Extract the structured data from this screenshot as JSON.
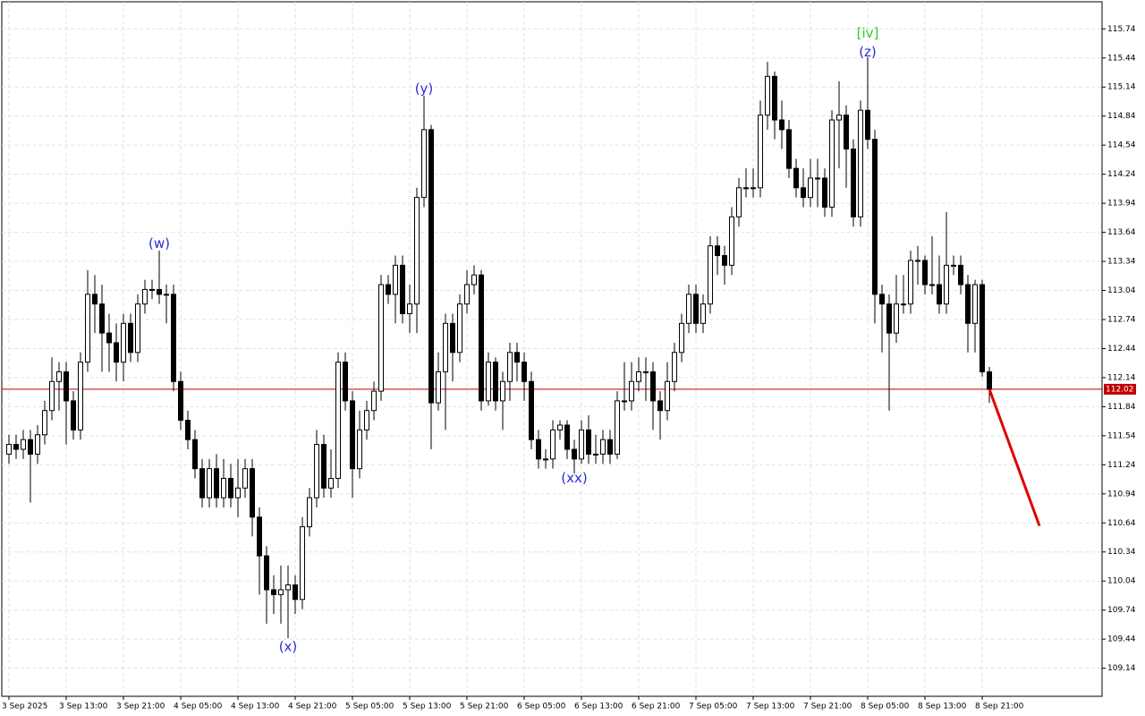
{
  "chart_data": {
    "type": "candlestick",
    "categories": [
      "3 Sep 2025",
      null,
      null,
      null,
      null,
      null,
      null,
      null,
      "3 Sep 13:00",
      null,
      null,
      null,
      null,
      null,
      null,
      null,
      "3 Sep 21:00",
      null,
      null,
      null,
      null,
      null,
      null,
      null,
      "4 Sep 05:00",
      null,
      null,
      null,
      null,
      null,
      null,
      null,
      "4 Sep 13:00",
      null,
      null,
      null,
      null,
      null,
      null,
      null,
      "4 Sep 21:00",
      null,
      null,
      null,
      null,
      null,
      null,
      null,
      "5 Sep 05:00",
      null,
      null,
      null,
      null,
      null,
      null,
      null,
      "5 Sep 13:00",
      null,
      null,
      null,
      null,
      null,
      null,
      null,
      "5 Sep 21:00",
      null,
      null,
      null,
      null,
      null,
      null,
      null,
      "6 Sep 05:00",
      null,
      null,
      null,
      null,
      null,
      null,
      null,
      "6 Sep 13:00",
      null,
      null,
      null,
      null,
      null,
      null,
      null,
      "6 Sep 21:00",
      null,
      null,
      null,
      null,
      null,
      null,
      null,
      "7 Sep 05:00",
      null,
      null,
      null,
      null,
      null,
      null,
      null,
      "7 Sep 13:00",
      null,
      null,
      null,
      null,
      null,
      null,
      null,
      "7 Sep 21:00",
      null,
      null,
      null,
      null,
      null,
      null,
      null,
      "8 Sep 05:00",
      null,
      null,
      null,
      null,
      null,
      null,
      null,
      "8 Sep 13:00",
      null,
      null,
      null,
      null,
      null,
      null,
      null,
      "8 Sep 21:00",
      null
    ],
    "open": [
      111.35,
      111.45,
      111.4,
      111.5,
      111.35,
      111.55,
      111.8,
      112.1,
      112.2,
      111.9,
      111.6,
      112.3,
      113.0,
      112.9,
      112.6,
      112.5,
      112.3,
      112.7,
      112.4,
      112.9,
      113.05,
      113.05,
      113.0,
      113.0,
      112.1,
      111.7,
      111.5,
      111.2,
      110.9,
      111.2,
      110.9,
      111.1,
      110.9,
      111.0,
      111.2,
      110.7,
      110.3,
      109.95,
      109.9,
      109.95,
      110.0,
      109.85,
      110.6,
      110.9,
      111.45,
      111.0,
      111.1,
      112.3,
      111.9,
      111.2,
      111.6,
      111.8,
      112.0,
      113.1,
      113.0,
      113.3,
      112.8,
      112.9,
      114.0,
      114.7,
      111.88,
      112.2,
      112.7,
      112.4,
      112.9,
      113.1,
      113.2,
      111.9,
      112.3,
      111.9,
      112.1,
      112.4,
      112.3,
      112.1,
      111.5,
      111.3,
      111.3,
      111.6,
      111.65,
      111.4,
      111.3,
      111.6,
      111.35,
      111.35,
      111.5,
      111.35,
      111.9,
      111.9,
      112.1,
      112.2,
      112.2,
      111.9,
      111.8,
      112.1,
      112.4,
      112.7,
      113.0,
      112.7,
      112.9,
      113.5,
      113.4,
      113.3,
      113.8,
      114.1,
      114.1,
      114.1,
      114.85,
      115.25,
      114.8,
      114.7,
      114.3,
      114.1,
      114.0,
      114.2,
      114.2,
      113.9,
      114.8,
      114.85,
      114.5,
      113.8,
      114.9,
      114.6,
      113.0,
      112.9,
      112.6,
      112.9,
      112.9,
      113.35,
      113.35,
      113.1,
      113.1,
      112.9,
      113.3,
      113.3,
      113.1,
      112.7,
      113.1,
      112.2
    ],
    "high": [
      111.55,
      111.55,
      111.6,
      111.6,
      111.65,
      111.9,
      112.35,
      112.3,
      112.3,
      112.0,
      112.4,
      113.25,
      113.2,
      113.1,
      112.8,
      112.7,
      112.8,
      112.8,
      113.0,
      113.15,
      113.15,
      113.45,
      113.1,
      113.1,
      112.2,
      111.8,
      111.6,
      111.3,
      111.3,
      111.35,
      111.3,
      111.25,
      111.3,
      111.3,
      111.3,
      110.8,
      110.4,
      110.1,
      110.2,
      110.2,
      110.1,
      110.7,
      111.0,
      111.6,
      111.55,
      111.4,
      112.4,
      112.4,
      112.0,
      111.8,
      111.9,
      112.1,
      113.2,
      113.2,
      113.4,
      113.4,
      113.1,
      114.1,
      115.05,
      114.75,
      112.4,
      112.8,
      112.8,
      113.0,
      113.25,
      113.3,
      113.25,
      112.4,
      112.35,
      112.2,
      112.5,
      112.5,
      112.4,
      112.2,
      111.6,
      111.4,
      111.7,
      111.7,
      111.7,
      111.5,
      111.7,
      111.75,
      111.55,
      111.6,
      111.6,
      112.0,
      112.3,
      112.3,
      112.35,
      112.35,
      112.3,
      112.0,
      112.3,
      112.5,
      112.8,
      113.1,
      113.1,
      113.0,
      113.6,
      113.6,
      113.5,
      113.9,
      114.2,
      114.3,
      114.3,
      115.0,
      115.4,
      115.3,
      115.0,
      114.8,
      114.4,
      114.3,
      114.4,
      114.4,
      114.3,
      114.9,
      115.2,
      114.95,
      114.6,
      115.0,
      115.45,
      114.7,
      113.1,
      113.0,
      113.2,
      113.2,
      113.45,
      113.5,
      113.4,
      113.6,
      113.4,
      113.85,
      113.4,
      113.4,
      113.2,
      113.15,
      113.15,
      112.25
    ],
    "low": [
      111.25,
      111.3,
      111.3,
      110.85,
      111.25,
      111.45,
      111.7,
      111.8,
      111.45,
      111.5,
      111.5,
      112.2,
      112.6,
      112.2,
      112.2,
      112.1,
      112.1,
      112.3,
      112.3,
      112.8,
      112.95,
      112.9,
      112.7,
      112.0,
      111.6,
      111.4,
      111.1,
      110.8,
      110.8,
      110.8,
      110.8,
      110.8,
      110.7,
      110.9,
      110.5,
      109.9,
      109.6,
      109.7,
      109.6,
      109.45,
      109.7,
      109.75,
      110.5,
      110.8,
      110.9,
      110.9,
      111.0,
      111.8,
      110.9,
      111.1,
      111.5,
      111.7,
      111.9,
      112.9,
      112.7,
      112.7,
      112.6,
      112.6,
      113.9,
      111.4,
      111.8,
      111.6,
      112.1,
      112.3,
      112.8,
      113.0,
      111.8,
      111.85,
      111.8,
      111.6,
      111.9,
      112.1,
      111.9,
      111.4,
      111.2,
      111.2,
      111.2,
      111.5,
      111.3,
      111.15,
      111.25,
      111.25,
      111.25,
      111.25,
      111.25,
      111.3,
      111.8,
      111.8,
      112.0,
      111.9,
      111.6,
      111.5,
      111.7,
      112.0,
      112.3,
      112.6,
      112.6,
      112.6,
      112.8,
      113.2,
      113.1,
      113.2,
      113.7,
      114.0,
      114.0,
      114.0,
      114.7,
      114.6,
      114.5,
      114.2,
      114.0,
      113.9,
      113.9,
      113.9,
      113.8,
      113.8,
      114.3,
      114.1,
      113.7,
      113.7,
      114.5,
      112.7,
      112.4,
      111.8,
      112.5,
      112.8,
      112.8,
      113.1,
      113.0,
      113.0,
      112.8,
      112.8,
      113.2,
      113.0,
      112.4,
      112.4,
      112.15,
      111.88
    ],
    "close": [
      111.45,
      111.4,
      111.5,
      111.35,
      111.55,
      111.8,
      112.1,
      112.2,
      111.9,
      111.6,
      112.3,
      113.0,
      112.9,
      112.6,
      112.5,
      112.3,
      112.7,
      112.4,
      112.9,
      113.05,
      113.05,
      113.0,
      113.0,
      112.1,
      111.7,
      111.5,
      111.2,
      110.9,
      111.2,
      110.9,
      111.1,
      110.9,
      111.0,
      111.2,
      110.7,
      110.3,
      109.95,
      109.9,
      109.95,
      110.0,
      109.85,
      110.6,
      110.9,
      111.45,
      111.0,
      111.1,
      112.3,
      111.9,
      111.2,
      111.6,
      111.8,
      112.0,
      113.1,
      113.0,
      113.3,
      112.8,
      112.9,
      114.0,
      114.7,
      111.88,
      112.2,
      112.7,
      112.4,
      112.9,
      113.1,
      113.2,
      111.9,
      112.3,
      111.9,
      112.1,
      112.4,
      112.3,
      112.1,
      111.5,
      111.3,
      111.3,
      111.6,
      111.65,
      111.4,
      111.3,
      111.6,
      111.35,
      111.35,
      111.5,
      111.35,
      111.9,
      111.9,
      112.1,
      112.2,
      112.2,
      111.9,
      111.8,
      112.1,
      112.4,
      112.7,
      113.0,
      112.7,
      112.9,
      113.5,
      113.4,
      113.3,
      113.8,
      114.1,
      114.1,
      114.1,
      114.85,
      115.25,
      114.8,
      114.7,
      114.3,
      114.1,
      114.0,
      114.2,
      114.2,
      113.9,
      114.8,
      114.85,
      114.5,
      113.8,
      114.9,
      114.6,
      113.0,
      112.9,
      112.6,
      112.9,
      112.9,
      113.35,
      113.35,
      113.1,
      113.1,
      112.9,
      113.3,
      113.3,
      113.1,
      112.7,
      113.1,
      112.2,
      112.02
    ],
    "up_color": "#ffffff",
    "down_color": "#000000",
    "ylim": [
      108.85,
      116.02
    ],
    "yticks": [
      115.74,
      115.44,
      115.14,
      114.84,
      114.54,
      114.24,
      113.94,
      113.64,
      113.34,
      113.04,
      112.74,
      112.44,
      112.14,
      111.84,
      111.54,
      111.24,
      110.94,
      110.64,
      110.34,
      110.04,
      109.74,
      109.44,
      109.14
    ],
    "grid": true,
    "last_price": 112.02,
    "last_price_color": "#c00000",
    "forecast": {
      "x": [
        137,
        144
      ],
      "values": [
        112.02,
        110.61
      ],
      "color": "#e00000"
    },
    "annotations": [
      {
        "text": "(w)",
        "x": 21,
        "y": 113.52,
        "color": "#2b2bd6"
      },
      {
        "text": "(x)",
        "x": 39,
        "y": 109.36,
        "color": "#2b2bd6"
      },
      {
        "text": "(y)",
        "x": 58,
        "y": 115.12,
        "color": "#2b2bd6"
      },
      {
        "text": "(xx)",
        "x": 79,
        "y": 111.1,
        "color": "#2b2bd6"
      },
      {
        "text": "(z)",
        "x": 120,
        "y": 115.5,
        "color": "#2b2bd6"
      },
      {
        "text": "[iv]",
        "x": 120,
        "y": 115.69,
        "color": "#2ecc2e"
      }
    ]
  }
}
